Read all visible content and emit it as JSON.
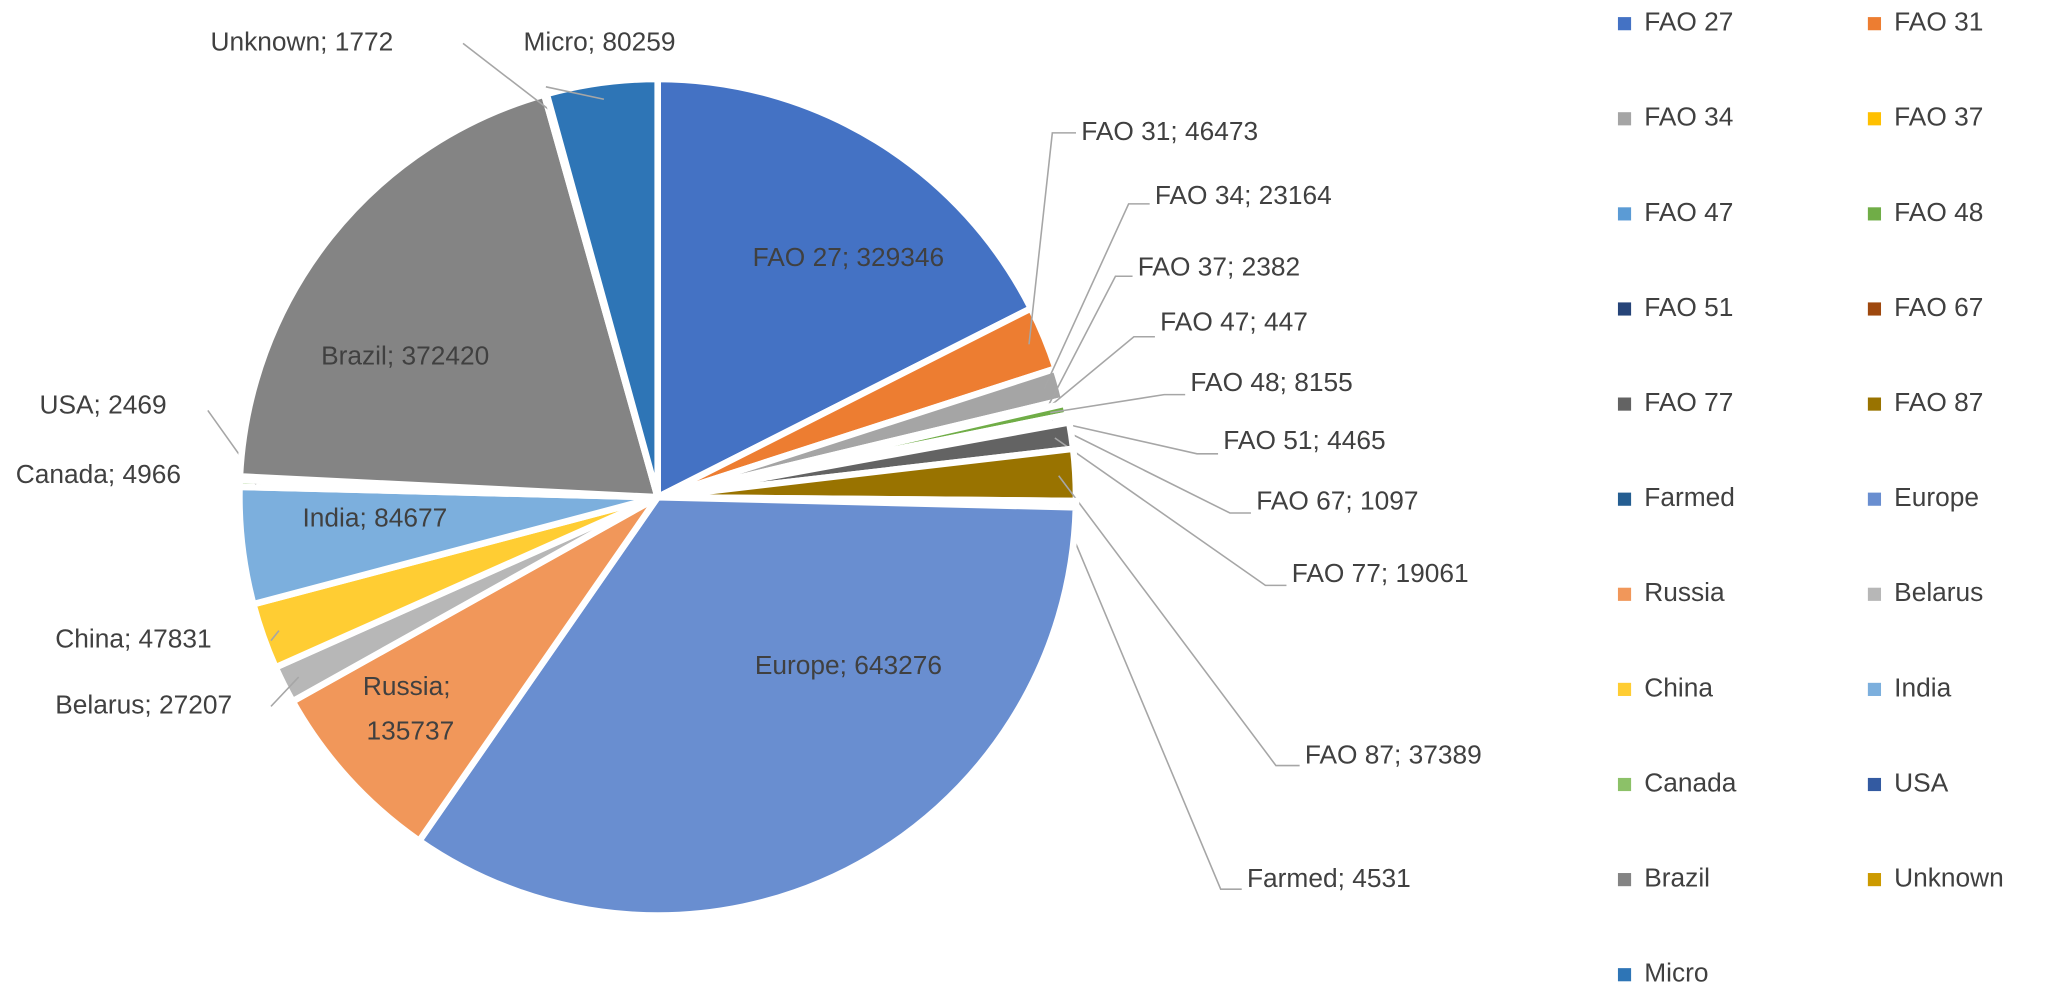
{
  "chart_data": {
    "type": "pie",
    "categories": [
      "FAO 27",
      "FAO 31",
      "FAO 34",
      "FAO 37",
      "FAO 47",
      "FAO 48",
      "FAO 51",
      "FAO 67",
      "FAO 77",
      "FAO 87",
      "Farmed",
      "Europe",
      "Russia",
      "Belarus",
      "China",
      "India",
      "Canada",
      "USA",
      "Brazil",
      "Unknown",
      "Micro"
    ],
    "values": [
      329346,
      46473,
      23164,
      2382,
      447,
      8155,
      4465,
      1097,
      19061,
      37389,
      4531,
      643276,
      135737,
      27207,
      47831,
      84677,
      4966,
      2469,
      372420,
      1772,
      80259
    ],
    "value_labels": [
      "FAO 27;  329346",
      "FAO 31;  46473",
      "FAO 34;  23164",
      "FAO 37;  2382",
      "FAO 47;  447",
      "FAO 48;  8155",
      "FAO 51;  4465",
      "FAO 67;  1097",
      "FAO 77;  19061",
      "FAO 87;  37389",
      "Farmed; 4531",
      "Europe; 643276",
      "Russia; 135737",
      "Belarus; 27207",
      "China; 47831",
      "India; 84677",
      "Canada; 4966",
      "USA; 2469",
      "Brazil; 372420",
      "Unknown; 1772",
      "Micro; 80259"
    ],
    "colors": [
      "#4472C4",
      "#ED7D31",
      "#A5A5A5",
      "#FFC000",
      "#5B9BD5",
      "#70AD47",
      "#264478",
      "#9E480E",
      "#636363",
      "#997300",
      "#255E91",
      "#698ED0",
      "#F1975A",
      "#B7B7B7",
      "#FFCD33",
      "#7CAFDD",
      "#8CC168",
      "#335AA1",
      "#848484",
      "#CC9A00",
      "#2E75B6"
    ],
    "legend": "right"
  }
}
